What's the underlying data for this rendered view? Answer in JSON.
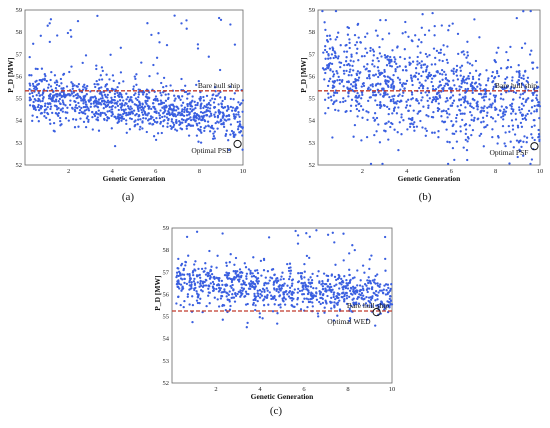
{
  "chart_data": [
    {
      "type": "scatter",
      "panel_label": "(a)",
      "xlabel": "Genetic Generation",
      "ylabel": "P_D [MW]",
      "xlim": [
        0,
        10
      ],
      "ylim": [
        52,
        59
      ],
      "xticks": [
        2,
        4,
        6,
        8,
        10
      ],
      "yticks": [
        52,
        53,
        54,
        55,
        56,
        57,
        58,
        59
      ],
      "reference_line": {
        "label": "Bare hull ship",
        "y": 55.35,
        "color": "#c0392b",
        "style": "dashed"
      },
      "optimal": {
        "label": "Optimal PSD",
        "x": 9.75,
        "y": 52.95
      },
      "series": [
        {
          "color": "#3a5fe0",
          "n_points": 1100,
          "trend_start_mean": 55.3,
          "trend_end_mean": 54.2,
          "spread": 0.55,
          "outlier_max": 58.8
        }
      ]
    },
    {
      "type": "scatter",
      "panel_label": "(b)",
      "xlabel": "Genetic Generation",
      "ylabel": "P_D [MW]",
      "xlim": [
        0,
        10
      ],
      "ylim": [
        52,
        59
      ],
      "xticks": [
        2,
        4,
        6,
        8,
        10
      ],
      "yticks": [
        52,
        53,
        54,
        55,
        56,
        57,
        58,
        59
      ],
      "reference_line": {
        "label": "Bare hull ship",
        "y": 55.35,
        "color": "#c0392b",
        "style": "dashed"
      },
      "optimal": {
        "label": "Optimal PSF",
        "x": 9.75,
        "y": 52.85
      },
      "series": [
        {
          "color": "#3a5fe0",
          "n_points": 1100,
          "trend_start_mean": 56.4,
          "trend_end_mean": 54.5,
          "spread": 1.1,
          "outlier_max": 59
        }
      ]
    },
    {
      "type": "scatter",
      "panel_label": "(c)",
      "xlabel": "Genetic Generation",
      "ylabel": "P_D [MW]",
      "xlim": [
        0,
        10
      ],
      "ylim": [
        52,
        59
      ],
      "xticks": [
        2,
        4,
        6,
        8,
        10
      ],
      "yticks": [
        52,
        53,
        54,
        55,
        56,
        57,
        58,
        59
      ],
      "reference_line": {
        "label": "Bare hull ship",
        "y": 55.25,
        "color": "#c0392b",
        "style": "dashed"
      },
      "optimal": {
        "label": "Optimal WED",
        "x": 9.3,
        "y": 55.2
      },
      "series": [
        {
          "color": "#3a5fe0",
          "n_points": 900,
          "trend_start_mean": 56.6,
          "trend_end_mean": 56.0,
          "spread": 0.5,
          "outlier_max": 58.9
        }
      ]
    }
  ]
}
